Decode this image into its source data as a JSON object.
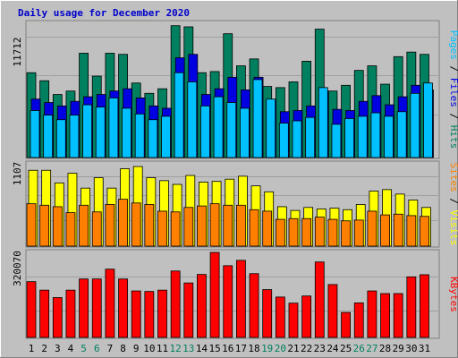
{
  "title": "Daily usage for December 2020",
  "chart_data": [
    {
      "type": "bar",
      "panel": "hits-files-pages",
      "ymax_label": "11712",
      "ylim": [
        0,
        11712
      ],
      "categories": [
        "1",
        "2",
        "3",
        "4",
        "5",
        "6",
        "7",
        "8",
        "9",
        "10",
        "11",
        "12",
        "13",
        "14",
        "15",
        "16",
        "17",
        "18",
        "19",
        "20",
        "21",
        "22",
        "23",
        "24",
        "25",
        "26",
        "27",
        "28",
        "29",
        "30",
        "31"
      ],
      "legend": [
        "Hits",
        "Files",
        "Pages"
      ],
      "legend_colors": {
        "Hits": "#00805F",
        "Files": "#0000E0",
        "Pages": "#00C0FF"
      },
      "series": [
        {
          "name": "Hits",
          "values": [
            7400,
            6700,
            5500,
            5800,
            9100,
            7100,
            9100,
            9000,
            6500,
            5600,
            6000,
            11500,
            11400,
            7400,
            7500,
            10800,
            8000,
            8600,
            6200,
            6100,
            6600,
            8400,
            11200,
            5800,
            6300,
            7600,
            8000,
            6400,
            8800,
            9200,
            9000
          ]
        },
        {
          "name": "Files",
          "values": [
            5100,
            4800,
            4500,
            4900,
            5300,
            5500,
            5800,
            6000,
            5200,
            4500,
            4300,
            8700,
            9000,
            5500,
            6000,
            7000,
            5900,
            7000,
            5000,
            4000,
            4100,
            4500,
            5800,
            4200,
            4100,
            4900,
            5400,
            4600,
            5300,
            6300,
            5900
          ]
        },
        {
          "name": "Pages",
          "values": [
            4100,
            3700,
            3300,
            3700,
            4600,
            4400,
            5200,
            4300,
            3800,
            3300,
            3600,
            7400,
            6600,
            4500,
            5300,
            4800,
            4300,
            6800,
            5100,
            3000,
            3200,
            3500,
            6100,
            2900,
            3400,
            3600,
            3900,
            3600,
            4000,
            5600,
            6500
          ]
        }
      ]
    },
    {
      "type": "bar",
      "panel": "visits-sites",
      "ymax_label": "1107",
      "ylim": [
        0,
        1107
      ],
      "legend": [
        "Visits",
        "Sites"
      ],
      "legend_colors": {
        "Visits": "#FFFF00",
        "Sites": "#FF8000"
      },
      "series": [
        {
          "name": "Visits",
          "values": [
            1020,
            1020,
            850,
            980,
            780,
            920,
            780,
            1040,
            1070,
            920,
            880,
            830,
            950,
            860,
            870,
            900,
            940,
            810,
            730,
            530,
            480,
            520,
            500,
            510,
            490,
            560,
            740,
            760,
            700,
            620,
            520
          ]
        },
        {
          "name": "Sites",
          "values": [
            570,
            550,
            530,
            450,
            550,
            460,
            560,
            630,
            580,
            560,
            470,
            460,
            520,
            540,
            570,
            550,
            550,
            490,
            470,
            360,
            370,
            370,
            390,
            360,
            340,
            350,
            470,
            420,
            430,
            410,
            400
          ]
        }
      ]
    },
    {
      "type": "bar",
      "panel": "kbytes",
      "ymax_label": "320070",
      "ylim": [
        0,
        320070
      ],
      "legend": [
        "KBytes"
      ],
      "legend_colors": {
        "KBytes": "#FF0000"
      },
      "series": [
        {
          "name": "KBytes",
          "values": [
            210000,
            178000,
            150000,
            178000,
            220000,
            220000,
            257000,
            220000,
            175000,
            173000,
            178000,
            250000,
            205000,
            237000,
            320000,
            270000,
            290000,
            240000,
            180000,
            152000,
            129000,
            156000,
            284000,
            199000,
            94000,
            130000,
            175000,
            165000,
            165000,
            228000,
            236000
          ]
        }
      ]
    }
  ],
  "x_labels": [
    {
      "label": "1",
      "color": "#000000"
    },
    {
      "label": "2",
      "color": "#000000"
    },
    {
      "label": "3",
      "color": "#000000"
    },
    {
      "label": "4",
      "color": "#000000"
    },
    {
      "label": "5",
      "color": "#00805F"
    },
    {
      "label": "6",
      "color": "#00805F"
    },
    {
      "label": "7",
      "color": "#000000"
    },
    {
      "label": "8",
      "color": "#000000"
    },
    {
      "label": "9",
      "color": "#000000"
    },
    {
      "label": "10",
      "color": "#000000"
    },
    {
      "label": "11",
      "color": "#000000"
    },
    {
      "label": "12",
      "color": "#00805F"
    },
    {
      "label": "13",
      "color": "#00805F"
    },
    {
      "label": "14",
      "color": "#000000"
    },
    {
      "label": "15",
      "color": "#000000"
    },
    {
      "label": "16",
      "color": "#000000"
    },
    {
      "label": "17",
      "color": "#000000"
    },
    {
      "label": "18",
      "color": "#000000"
    },
    {
      "label": "19",
      "color": "#00805F"
    },
    {
      "label": "20",
      "color": "#00805F"
    },
    {
      "label": "21",
      "color": "#000000"
    },
    {
      "label": "22",
      "color": "#000000"
    },
    {
      "label": "23",
      "color": "#000000"
    },
    {
      "label": "24",
      "color": "#000000"
    },
    {
      "label": "25",
      "color": "#000000"
    },
    {
      "label": "26",
      "color": "#00805F"
    },
    {
      "label": "27",
      "color": "#00805F"
    },
    {
      "label": "28",
      "color": "#000000"
    },
    {
      "label": "29",
      "color": "#000000"
    },
    {
      "label": "30",
      "color": "#000000"
    },
    {
      "label": "31",
      "color": "#000000"
    }
  ],
  "legend_text": {
    "top": [
      {
        "text": "Pages",
        "color": "#00C0FF"
      },
      {
        "text": " / ",
        "color": "#000000"
      },
      {
        "text": "Files",
        "color": "#0000E0"
      },
      {
        "text": " / ",
        "color": "#000000"
      },
      {
        "text": "Hits",
        "color": "#00805F"
      }
    ],
    "mid": [
      {
        "text": "Sites",
        "color": "#FF8000"
      },
      {
        "text": " / ",
        "color": "#000000"
      },
      {
        "text": "Visits",
        "color": "#FFFF00"
      }
    ],
    "bot": [
      {
        "text": "KBytes",
        "color": "#FF0000"
      }
    ]
  }
}
